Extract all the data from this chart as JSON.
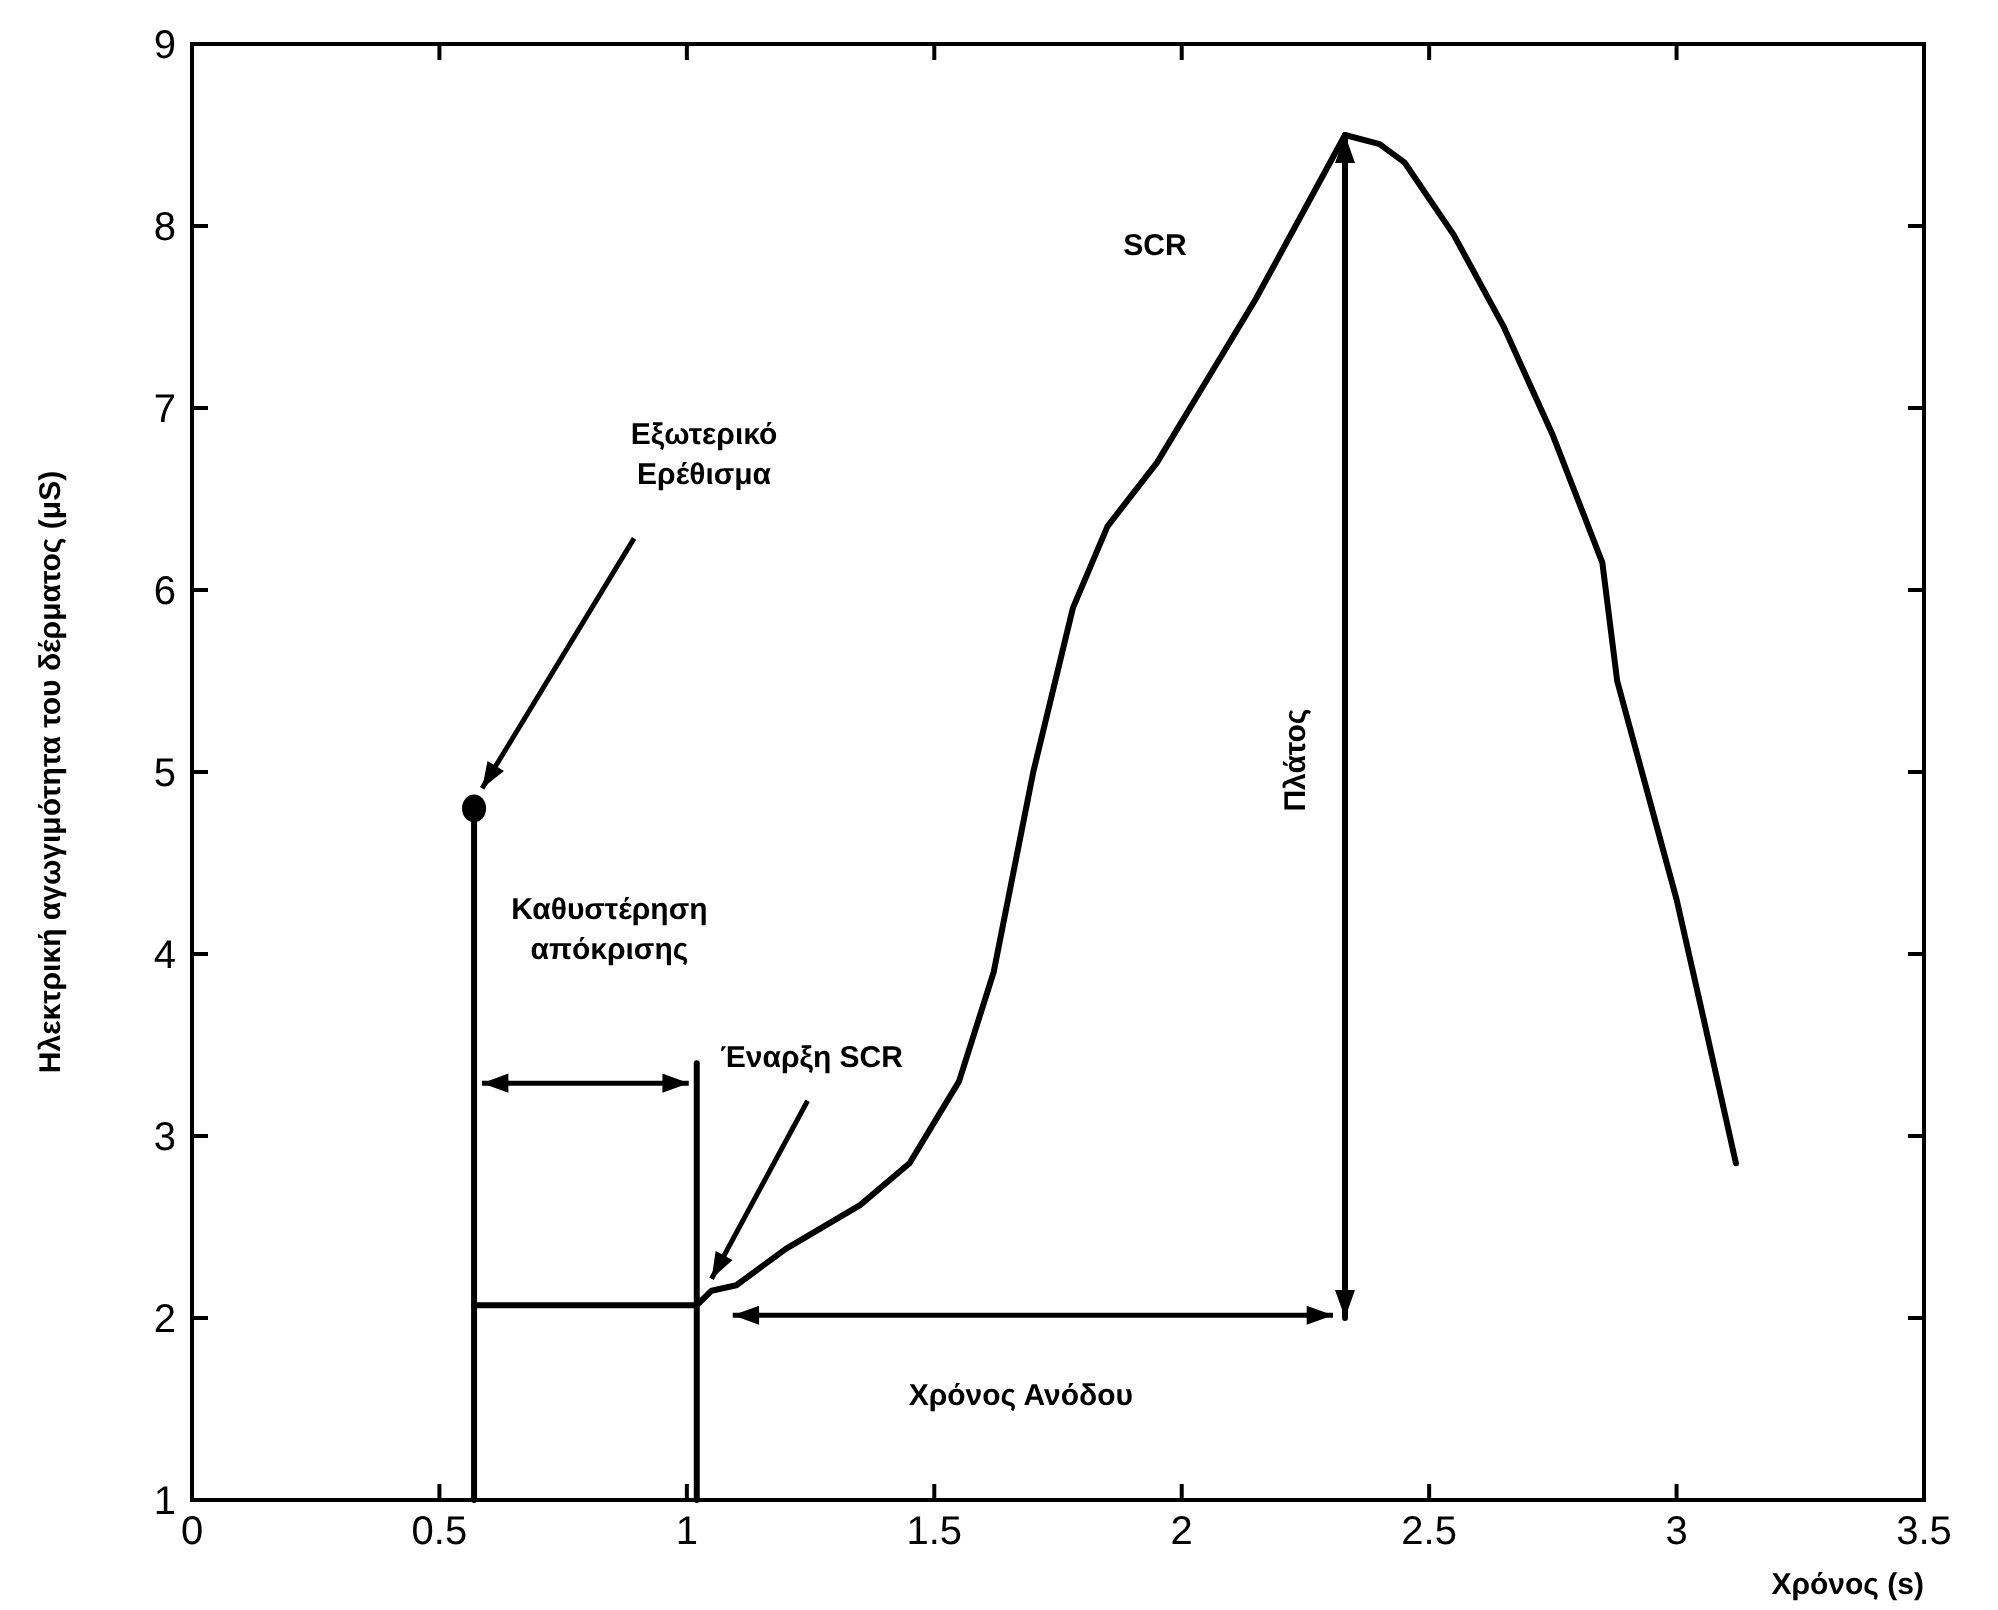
{
  "chart_data": {
    "type": "line",
    "xlabel": "Χρόνος (s)",
    "ylabel": "Ηλεκτρική αγωγιμότητα του δέρματος (μS)",
    "xlim": [
      0,
      3.5
    ],
    "ylim": [
      1,
      9
    ],
    "xticks": [
      0,
      0.5,
      1,
      1.5,
      2,
      2.5,
      3,
      3.5
    ],
    "yticks": [
      1,
      2,
      3,
      4,
      5,
      6,
      7,
      8,
      9
    ],
    "grid": false,
    "series": [
      {
        "color": "#000000",
        "x": [
          0.57,
          1.02,
          1.05,
          1.1,
          1.2,
          1.35,
          1.45,
          1.55,
          1.62,
          1.7,
          1.78,
          1.85,
          1.95,
          2.05,
          2.15,
          2.25,
          2.33,
          2.4,
          2.45,
          2.55,
          2.65,
          2.75,
          2.85,
          2.88,
          2.95,
          3.0,
          3.05,
          3.12
        ],
        "values": [
          2.07,
          2.07,
          2.15,
          2.18,
          2.38,
          2.62,
          2.85,
          3.3,
          3.9,
          5.0,
          5.9,
          6.35,
          6.7,
          7.15,
          7.6,
          8.1,
          8.5,
          8.45,
          8.35,
          7.95,
          7.45,
          6.85,
          6.15,
          5.5,
          4.8,
          4.3,
          3.7,
          2.85
        ]
      },
      {
        "color": "#000000",
        "x": [
          0.57,
          0.57
        ],
        "values": [
          1,
          4.8
        ]
      },
      {
        "color": "#000000",
        "x": [
          1.02,
          1.02
        ],
        "values": [
          1,
          3.4
        ]
      },
      {
        "type": "scatter",
        "color": "#000000",
        "marker": "circle",
        "x": [
          0.57
        ],
        "values": [
          4.8
        ]
      },
      {
        "color": "#000000",
        "x": [
          2.33,
          2.33
        ],
        "values": [
          2.0,
          8.5
        ]
      }
    ],
    "annotations": [
      "Εξωτερικό\nΕρέθισμα",
      {
        "text": "Έναρξη SCR",
        "x": 1.05,
        "y": 2.15
      },
      "Καθυστέρηση\nαπόκρισης",
      "SCR",
      "Πλάτος",
      "Χρόνος Ανόδου"
    ]
  }
}
